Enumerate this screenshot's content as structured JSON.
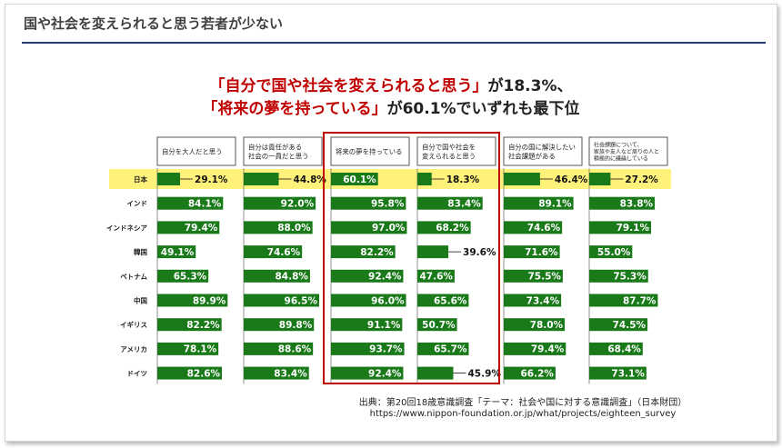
{
  "slide_title": "国や社会を変えられると思う若者が少ない",
  "headline": {
    "line1_highlight": "「自分で国や社会を変えられると思う」",
    "line1_rest": "が18.3%、",
    "line2_highlight": "「将来の夢を持っている」",
    "line2_rest": "が60.1%でいずれも最下位"
  },
  "source": {
    "line1": "出典：第20回18歳意識調査「テーマ：社会や国に対する意識調査」（日本財団）",
    "line2": "https://www.nippon-foundation.or.jp/what/projects/eighteen_survey"
  },
  "colors": {
    "bar": "#1a7a1a",
    "japan_band": "#fff27a",
    "highlight_box": "#c00000",
    "headline_red": "#c00000"
  },
  "chart_data": {
    "type": "bar",
    "orientation": "horizontal",
    "unit": "%",
    "highlighted_category": "日本",
    "highlighted_columns": [
      "将来の夢を持っている",
      "自分で国や社会を変えられると思う"
    ],
    "categories": [
      "日本",
      "インド",
      "インドネシア",
      "韓国",
      "ベトナム",
      "中国",
      "イギリス",
      "アメリカ",
      "ドイツ"
    ],
    "series": [
      {
        "name": "自分を大人だと思う",
        "header_lines": [
          "自分を大人だと思う"
        ],
        "values": [
          29.1,
          84.1,
          79.4,
          49.1,
          65.3,
          89.9,
          82.2,
          78.1,
          82.6
        ]
      },
      {
        "name": "自分は責任がある社会の一員だと思う",
        "header_lines": [
          "自分は責任がある",
          "社会の一員だと思う"
        ],
        "values": [
          44.8,
          92.0,
          88.0,
          74.6,
          84.8,
          96.5,
          89.8,
          88.6,
          83.4
        ]
      },
      {
        "name": "将来の夢を持っている",
        "header_lines": [
          "将来の夢を持っている"
        ],
        "values": [
          60.1,
          95.8,
          97.0,
          82.2,
          92.4,
          96.0,
          91.1,
          93.7,
          92.4
        ]
      },
      {
        "name": "自分で国や社会を変えられると思う",
        "header_lines": [
          "自分で国や社会を",
          "変えられると思う"
        ],
        "values": [
          18.3,
          83.4,
          68.2,
          39.6,
          47.6,
          65.6,
          50.7,
          65.7,
          45.9
        ]
      },
      {
        "name": "自分の国に解決したい社会課題がある",
        "header_lines": [
          "自分の国に解決したい",
          "社会課題がある"
        ],
        "values": [
          46.4,
          89.1,
          74.6,
          71.6,
          75.5,
          73.4,
          78.0,
          79.4,
          66.2
        ]
      },
      {
        "name": "社会課題について、家族や友人など周りの人と積極的に議論している",
        "header_lines": [
          "社会課題について、",
          "家族や友人など周りの人と",
          "積極的に議論している"
        ],
        "values": [
          27.2,
          83.8,
          79.1,
          55.0,
          75.3,
          87.7,
          74.5,
          68.4,
          73.1
        ]
      }
    ],
    "value_suffix": "%"
  }
}
